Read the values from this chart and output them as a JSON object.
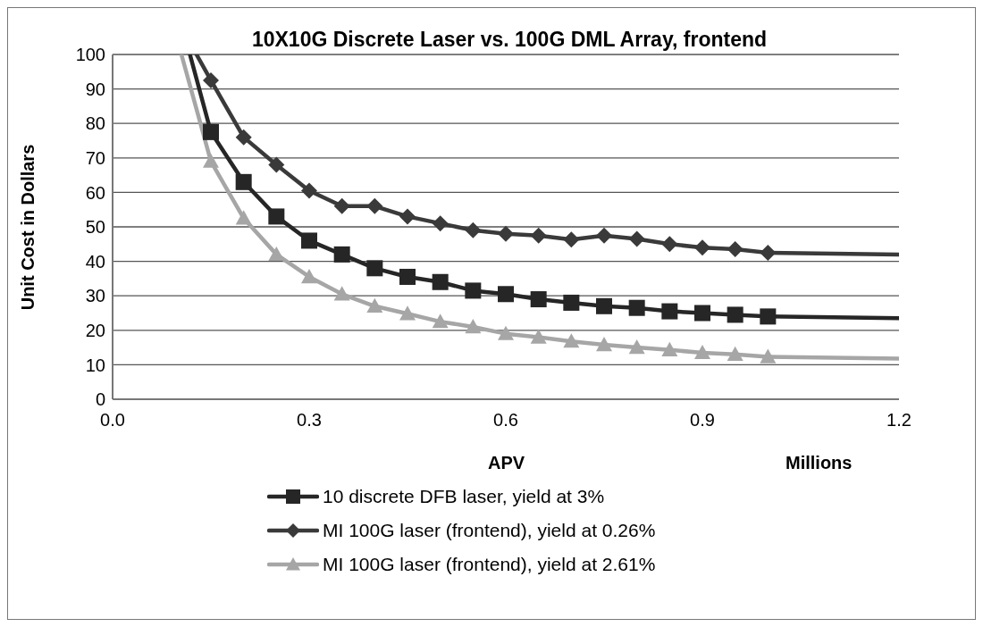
{
  "chart_data": {
    "type": "line",
    "title": "10X10G Discrete Laser vs. 100G DML Array, frontend",
    "xlabel": "APV",
    "ylabel": "Unit Cost in Dollars",
    "annotations": [
      "Millions"
    ],
    "xlim": [
      0,
      1.2
    ],
    "xticks": [
      {
        "value": 0,
        "label": "0.0"
      },
      {
        "value": 0.3,
        "label": "0.3"
      },
      {
        "value": 0.6,
        "label": "0.6"
      },
      {
        "value": 0.9,
        "label": "0.9"
      },
      {
        "value": 1.2,
        "label": "1.2"
      }
    ],
    "ylim": [
      0,
      100
    ],
    "yticks": [
      0,
      10,
      20,
      30,
      40,
      50,
      60,
      70,
      80,
      90,
      100
    ],
    "grid": "y",
    "legend": "bottom",
    "series": [
      {
        "name": "10 discrete DFB laser, yield at 3%",
        "color": "#262626",
        "marker": "square",
        "x": [
          0.15,
          0.2,
          0.25,
          0.3,
          0.35,
          0.4,
          0.45,
          0.5,
          0.55,
          0.6,
          0.65,
          0.7,
          0.75,
          0.8,
          0.85,
          0.9,
          0.95,
          1.0
        ],
        "values": [
          77.5,
          63,
          53,
          46,
          42,
          38,
          35.5,
          34,
          31.5,
          30.5,
          29,
          28,
          27,
          26.5,
          25.5,
          25,
          24.5,
          24
        ]
      },
      {
        "name": "MI 100G laser (frontend), yield at 0.26%",
        "color": "#3a3a3a",
        "marker": "diamond",
        "x": [
          0.15,
          0.2,
          0.25,
          0.3,
          0.35,
          0.4,
          0.45,
          0.5,
          0.55,
          0.6,
          0.65,
          0.7,
          0.75,
          0.8,
          0.85,
          0.9,
          0.95,
          1.0
        ],
        "values": [
          92.5,
          76,
          68,
          60.5,
          56,
          56,
          53,
          51,
          49,
          48,
          47.5,
          46.3,
          47.5,
          46.5,
          45,
          44,
          43.5,
          42.5
        ]
      },
      {
        "name": "MI 100G laser (frontend), yield at 2.61%",
        "color": "#a6a6a6",
        "marker": "triangle",
        "x": [
          0.15,
          0.2,
          0.25,
          0.3,
          0.35,
          0.4,
          0.45,
          0.5,
          0.55,
          0.6,
          0.65,
          0.7,
          0.75,
          0.8,
          0.85,
          0.9,
          0.95,
          1.0
        ],
        "values": [
          69,
          52.5,
          42,
          35.5,
          30.5,
          27,
          24.8,
          22.5,
          21,
          19,
          18,
          16.8,
          15.8,
          15,
          14.3,
          13.5,
          13,
          12.3
        ]
      },
      {
        "color": "#262626",
        "marker": "none",
        "x": [
          0.118,
          0.15,
          0.5,
          1.0,
          1.2
        ],
        "values": [
          100,
          77.5,
          null,
          24,
          23.5
        ]
      },
      {
        "color": "#3a3a3a",
        "marker": "none",
        "x": [
          0.128,
          0.15,
          0.5,
          1.0,
          1.2
        ],
        "values": [
          100,
          92.5,
          null,
          42.5,
          42
        ]
      },
      {
        "color": "#a6a6a6",
        "marker": "none",
        "x": [
          0.105,
          0.15,
          0.5,
          1.0,
          1.2
        ],
        "values": [
          100,
          69,
          null,
          12.3,
          11.8
        ]
      }
    ]
  }
}
